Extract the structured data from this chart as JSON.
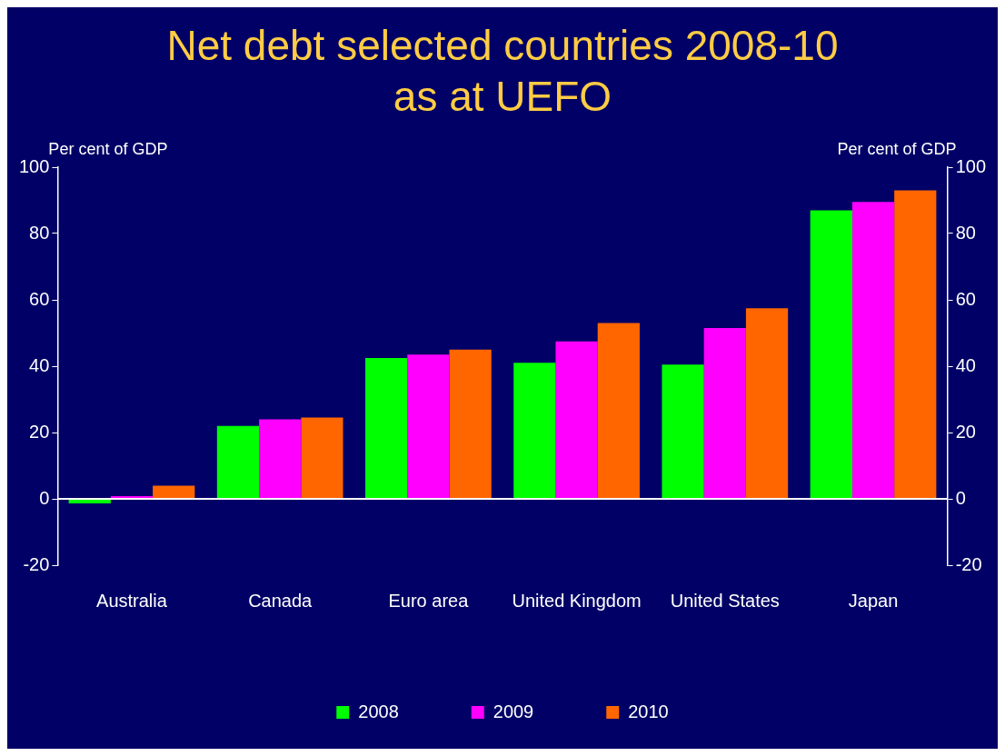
{
  "chart_data": {
    "type": "bar",
    "title": "Net debt selected countries 2008-10 as at UEFO",
    "ylabel": "Per cent of GDP",
    "y2label": "Per cent of GDP",
    "categories": [
      "Australia",
      "Canada",
      "Euro area",
      "United Kingdom",
      "United States",
      "Japan"
    ],
    "series": [
      {
        "name": "2008",
        "color": "#00ff00",
        "values": [
          -1.4,
          22,
          42.5,
          41,
          40.5,
          87
        ]
      },
      {
        "name": "2009",
        "color": "#ff00ff",
        "values": [
          0.8,
          24,
          43.5,
          47.5,
          51.5,
          89.5
        ]
      },
      {
        "name": "2010",
        "color": "#ff6600",
        "values": [
          4,
          24.5,
          45,
          53,
          57.5,
          93
        ]
      }
    ],
    "ylim": [
      -20,
      100
    ],
    "yticks": [
      -20,
      0,
      20,
      40,
      60,
      80,
      100
    ],
    "y2lim": [
      -20,
      100
    ],
    "y2ticks": [
      -20,
      0,
      20,
      40,
      60,
      80,
      100
    ],
    "ref_lines": [
      {
        "axis": "y",
        "value": 0,
        "color": "#ffffff"
      }
    ],
    "grid": false,
    "legend": "bottom"
  }
}
